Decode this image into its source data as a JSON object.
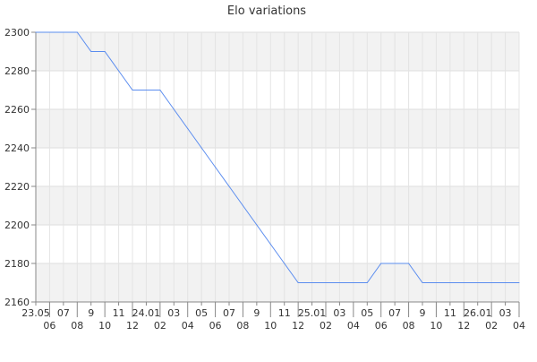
{
  "chart_data": {
    "type": "line",
    "title": "Elo variations",
    "xlabel": "",
    "ylabel": "",
    "ylim": [
      2160,
      2300
    ],
    "yticks": [
      2160,
      2180,
      2200,
      2220,
      2240,
      2260,
      2280,
      2300
    ],
    "grid": true,
    "x": [
      "23.05",
      "06",
      "07",
      "08",
      "9",
      "10",
      "11",
      "12",
      "24.01",
      "02",
      "03",
      "04",
      "05",
      "06",
      "07",
      "08",
      "9",
      "10",
      "11",
      "12",
      "25.01",
      "02",
      "03",
      "04",
      "05",
      "06",
      "07",
      "08",
      "9",
      "10",
      "11",
      "12",
      "26.01",
      "02",
      "03",
      "04"
    ],
    "series": [
      {
        "color": "#5b8def",
        "values": [
          2300,
          2300,
          2300,
          2300,
          2290,
          2290,
          2280,
          2270,
          2270,
          2270,
          2260,
          2250,
          2240,
          2230,
          2220,
          2210,
          2200,
          2190,
          2180,
          2170,
          2170,
          2170,
          2170,
          2170,
          2170,
          2180,
          2180,
          2180,
          2170,
          2170,
          2170,
          2170,
          2170,
          2170,
          2170,
          2170
        ]
      }
    ]
  }
}
